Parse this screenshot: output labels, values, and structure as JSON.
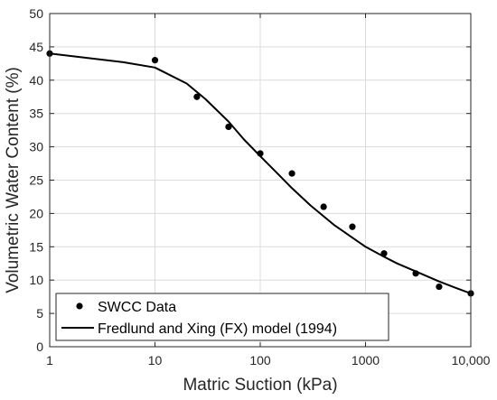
{
  "chart_data": {
    "type": "scatter",
    "xlabel": "Matric Suction (kPa)",
    "ylabel": "Volumetric Water Content (%)",
    "x_scale": "log",
    "xlim": [
      1,
      10000
    ],
    "ylim": [
      0,
      50
    ],
    "x_ticks": [
      1,
      10,
      100,
      1000,
      10000
    ],
    "x_tick_labels": [
      "1",
      "10",
      "100",
      "1000",
      "10,000"
    ],
    "y_ticks": [
      0,
      5,
      10,
      15,
      20,
      25,
      30,
      35,
      40,
      45,
      50
    ],
    "grid": true,
    "legend_position": "bottom-left",
    "colors": {
      "series": "#000000",
      "grid": "#dcdcdc",
      "axis": "#262626"
    },
    "series": [
      {
        "name": "SWCC Data",
        "kind": "markers",
        "x": [
          1,
          10,
          25,
          50,
          100,
          200,
          400,
          750,
          1500,
          3000,
          5000,
          10000
        ],
        "y": [
          44,
          43,
          37.5,
          33,
          29,
          26,
          21,
          18,
          14,
          11,
          9,
          8
        ]
      },
      {
        "name": "Fredlund and Xing (FX) model (1994)",
        "kind": "line",
        "x": [
          1,
          5,
          10,
          20,
          30,
          50,
          70,
          100,
          150,
          200,
          300,
          500,
          700,
          1000,
          1500,
          2000,
          3000,
          5000,
          7000,
          10000
        ],
        "y": [
          44,
          42.7,
          41.9,
          39.5,
          37.2,
          33.8,
          31.1,
          28.6,
          25.8,
          23.8,
          21.2,
          18.3,
          16.7,
          15.0,
          13.5,
          12.5,
          11.3,
          9.8,
          8.9,
          8.0
        ]
      }
    ]
  }
}
